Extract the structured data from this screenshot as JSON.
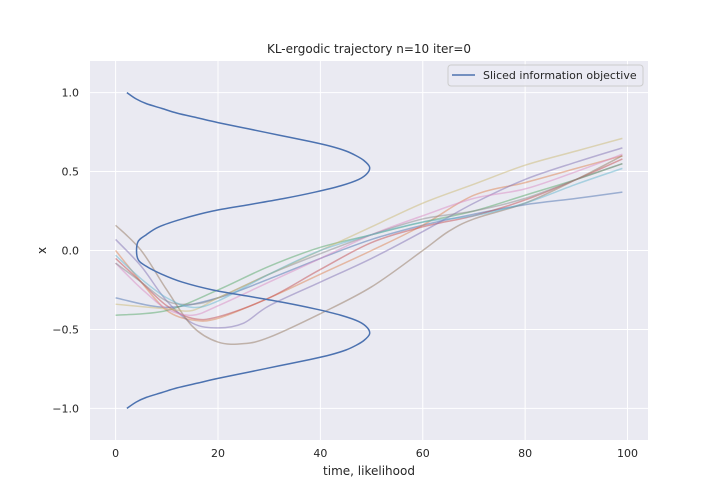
{
  "chart_data": {
    "type": "line",
    "title": "KL-ergodic trajectory n=10 iter=0",
    "xlabel": "time, likelihood",
    "ylabel": "x",
    "xlim": [
      -5,
      104
    ],
    "ylim": [
      -1.2,
      1.2
    ],
    "xticks": [
      0,
      20,
      40,
      60,
      80,
      100
    ],
    "yticks": [
      -1.0,
      -0.5,
      0.0,
      0.5,
      1.0
    ],
    "xtick_labels": [
      "0",
      "20",
      "40",
      "60",
      "80",
      "100"
    ],
    "ytick_labels": [
      "−1.0",
      "−0.5",
      "0.0",
      "0.5",
      "1.0"
    ],
    "grid": true,
    "background": "#eaeaf2",
    "legend": {
      "location": "top-right",
      "entries": [
        {
          "label": "Sliced information objective",
          "color": "#4c72b0"
        }
      ]
    },
    "objective": {
      "name": "Sliced information objective",
      "color": "#4c72b0",
      "points": [
        [
          2.2,
          1.0
        ],
        [
          4,
          0.96
        ],
        [
          6,
          0.93
        ],
        [
          9,
          0.9
        ],
        [
          12,
          0.87
        ],
        [
          16,
          0.84
        ],
        [
          20,
          0.81
        ],
        [
          26,
          0.77
        ],
        [
          32,
          0.73
        ],
        [
          38,
          0.69
        ],
        [
          42,
          0.66
        ],
        [
          45,
          0.63
        ],
        [
          47,
          0.6
        ],
        [
          48.5,
          0.57
        ],
        [
          49.6,
          0.53
        ],
        [
          49.2,
          0.49
        ],
        [
          47.5,
          0.45
        ],
        [
          44,
          0.41
        ],
        [
          39,
          0.37
        ],
        [
          33,
          0.33
        ],
        [
          26,
          0.29
        ],
        [
          19,
          0.25
        ],
        [
          13,
          0.2
        ],
        [
          8.5,
          0.15
        ],
        [
          6,
          0.1
        ],
        [
          4.3,
          0.05
        ],
        [
          4.3,
          -0.05
        ],
        [
          6,
          -0.1
        ],
        [
          9,
          -0.15
        ],
        [
          13,
          -0.2
        ],
        [
          19,
          -0.25
        ],
        [
          26,
          -0.29
        ],
        [
          33,
          -0.33
        ],
        [
          39,
          -0.37
        ],
        [
          44,
          -0.41
        ],
        [
          47.5,
          -0.45
        ],
        [
          49.2,
          -0.49
        ],
        [
          49.6,
          -0.53
        ],
        [
          48.5,
          -0.57
        ],
        [
          47,
          -0.6
        ],
        [
          45,
          -0.63
        ],
        [
          42,
          -0.66
        ],
        [
          38,
          -0.69
        ],
        [
          32,
          -0.73
        ],
        [
          26,
          -0.77
        ],
        [
          20,
          -0.81
        ],
        [
          16,
          -0.84
        ],
        [
          12,
          -0.87
        ],
        [
          9,
          -0.9
        ],
        [
          6,
          -0.93
        ],
        [
          4,
          -0.96
        ],
        [
          2.2,
          -1.0
        ]
      ]
    },
    "trajectories": [
      {
        "color": "#4c72b0",
        "points": [
          [
            0,
            -0.3
          ],
          [
            10,
            -0.36
          ],
          [
            20,
            -0.3
          ],
          [
            30,
            -0.18
          ],
          [
            40,
            -0.05
          ],
          [
            50,
            0.07
          ],
          [
            60,
            0.16
          ],
          [
            70,
            0.23
          ],
          [
            80,
            0.29
          ],
          [
            90,
            0.33
          ],
          [
            99,
            0.37
          ]
        ]
      },
      {
        "color": "#dd8452",
        "points": [
          [
            0,
            0.0
          ],
          [
            5,
            -0.2
          ],
          [
            10,
            -0.38
          ],
          [
            15,
            -0.44
          ],
          [
            20,
            -0.43
          ],
          [
            30,
            -0.3
          ],
          [
            40,
            -0.15
          ],
          [
            50,
            0.0
          ],
          [
            60,
            0.16
          ],
          [
            70,
            0.35
          ],
          [
            80,
            0.43
          ],
          [
            90,
            0.52
          ],
          [
            99,
            0.6
          ]
        ]
      },
      {
        "color": "#55a868",
        "points": [
          [
            0,
            -0.41
          ],
          [
            10,
            -0.38
          ],
          [
            20,
            -0.25
          ],
          [
            30,
            -0.1
          ],
          [
            40,
            0.02
          ],
          [
            50,
            0.1
          ],
          [
            60,
            0.18
          ],
          [
            70,
            0.25
          ],
          [
            80,
            0.35
          ],
          [
            90,
            0.45
          ],
          [
            99,
            0.55
          ]
        ]
      },
      {
        "color": "#c44e52",
        "points": [
          [
            0,
            -0.05
          ],
          [
            5,
            -0.2
          ],
          [
            10,
            -0.35
          ],
          [
            15,
            -0.43
          ],
          [
            20,
            -0.42
          ],
          [
            30,
            -0.3
          ],
          [
            40,
            -0.12
          ],
          [
            50,
            0.05
          ],
          [
            60,
            0.15
          ],
          [
            70,
            0.22
          ],
          [
            80,
            0.32
          ],
          [
            90,
            0.45
          ],
          [
            99,
            0.58
          ]
        ]
      },
      {
        "color": "#8172b3",
        "points": [
          [
            0,
            0.07
          ],
          [
            5,
            -0.1
          ],
          [
            10,
            -0.32
          ],
          [
            15,
            -0.46
          ],
          [
            20,
            -0.49
          ],
          [
            25,
            -0.46
          ],
          [
            30,
            -0.35
          ],
          [
            40,
            -0.2
          ],
          [
            50,
            -0.05
          ],
          [
            60,
            0.12
          ],
          [
            70,
            0.3
          ],
          [
            80,
            0.45
          ],
          [
            90,
            0.56
          ],
          [
            99,
            0.65
          ]
        ]
      },
      {
        "color": "#937860",
        "points": [
          [
            0,
            0.16
          ],
          [
            5,
            0.0
          ],
          [
            10,
            -0.25
          ],
          [
            15,
            -0.48
          ],
          [
            20,
            -0.58
          ],
          [
            25,
            -0.59
          ],
          [
            30,
            -0.55
          ],
          [
            40,
            -0.4
          ],
          [
            50,
            -0.23
          ],
          [
            60,
            0.0
          ],
          [
            65,
            0.12
          ],
          [
            70,
            0.2
          ],
          [
            80,
            0.3
          ],
          [
            90,
            0.45
          ],
          [
            99,
            0.6
          ]
        ]
      },
      {
        "color": "#da8bc3",
        "points": [
          [
            0,
            -0.08
          ],
          [
            5,
            -0.24
          ],
          [
            10,
            -0.37
          ],
          [
            15,
            -0.41
          ],
          [
            20,
            -0.35
          ],
          [
            30,
            -0.2
          ],
          [
            40,
            -0.05
          ],
          [
            50,
            0.1
          ],
          [
            60,
            0.22
          ],
          [
            70,
            0.33
          ],
          [
            80,
            0.39
          ],
          [
            90,
            0.5
          ],
          [
            99,
            0.61
          ]
        ]
      },
      {
        "color": "#8c8c8c",
        "points": [
          [
            0,
            -0.08
          ],
          [
            5,
            -0.2
          ],
          [
            10,
            -0.32
          ],
          [
            15,
            -0.34
          ],
          [
            20,
            -0.3
          ],
          [
            30,
            -0.15
          ],
          [
            40,
            -0.02
          ],
          [
            50,
            0.1
          ],
          [
            60,
            0.2
          ],
          [
            70,
            0.25
          ],
          [
            80,
            0.33
          ],
          [
            90,
            0.45
          ],
          [
            99,
            0.55
          ]
        ]
      },
      {
        "color": "#ccb974",
        "points": [
          [
            0,
            -0.34
          ],
          [
            10,
            -0.37
          ],
          [
            15,
            -0.38
          ],
          [
            20,
            -0.3
          ],
          [
            30,
            -0.15
          ],
          [
            40,
            0.0
          ],
          [
            50,
            0.15
          ],
          [
            60,
            0.3
          ],
          [
            70,
            0.42
          ],
          [
            80,
            0.54
          ],
          [
            90,
            0.63
          ],
          [
            99,
            0.71
          ]
        ]
      },
      {
        "color": "#64b5cd",
        "points": [
          [
            0,
            -0.03
          ],
          [
            5,
            -0.18
          ],
          [
            10,
            -0.3
          ],
          [
            15,
            -0.36
          ],
          [
            20,
            -0.32
          ],
          [
            30,
            -0.15
          ],
          [
            40,
            0.0
          ],
          [
            50,
            0.1
          ],
          [
            60,
            0.18
          ],
          [
            70,
            0.22
          ],
          [
            80,
            0.3
          ],
          [
            90,
            0.42
          ],
          [
            99,
            0.52
          ]
        ]
      }
    ]
  }
}
